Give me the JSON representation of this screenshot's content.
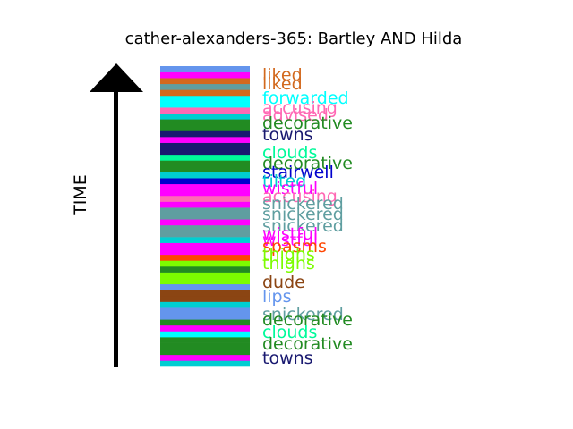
{
  "chart_data": {
    "type": "timeline-strip",
    "title": "cather-alexanders-365: Bartley AND Hilda",
    "ylabel": "TIME",
    "ylim": [
      0,
      336
    ],
    "stripe_colors": [
      "#00ced1",
      "#ff00ff",
      "#228b22",
      "#228b22",
      "#228b22",
      "#00ffff",
      "#ff00ff",
      "#228b22",
      "#6495ed",
      "#6495ed",
      "#00ced1",
      "#8b4513",
      "#8b4513",
      "#6495ed",
      "#7cfc00",
      "#7cfc00",
      "#228b22",
      "#7cfc00",
      "#ff4500",
      "#ff00ff",
      "#ff00ff",
      "#00ced1",
      "#5f9ea0",
      "#5f9ea0",
      "#ff00ff",
      "#5f9ea0",
      "#5f9ea0",
      "#ff00ff",
      "#ff69b4",
      "#ff00ff",
      "#ff00ff",
      "#0000cd",
      "#00ced1",
      "#228b22",
      "#228b22",
      "#00fa9a",
      "#191970",
      "#191970",
      "#ff00ff",
      "#191970",
      "#228b22",
      "#228b22",
      "#00ced1",
      "#ff69b4",
      "#00ffff",
      "#00ffff",
      "#d2691e",
      "#5f9ea0",
      "#d2691e",
      "#ff00ff",
      "#6495ed"
    ],
    "labels": [
      {
        "text": "liked",
        "color": "#d2691e",
        "y": 326
      },
      {
        "text": "liked",
        "color": "#d2691e",
        "y": 316
      },
      {
        "text": "forwarded",
        "color": "#00ffff",
        "y": 300
      },
      {
        "text": "accusing",
        "color": "#ff69b4",
        "y": 289
      },
      {
        "text": "advised",
        "color": "#ff69b4",
        "y": 281
      },
      {
        "text": "decorative",
        "color": "#228b22",
        "y": 272
      },
      {
        "text": "towns",
        "color": "#191970",
        "y": 259
      },
      {
        "text": "clouds",
        "color": "#00fa9a",
        "y": 239
      },
      {
        "text": "decorative",
        "color": "#228b22",
        "y": 227
      },
      {
        "text": "stairwell",
        "color": "#0000cd",
        "y": 217
      },
      {
        "text": "tilted",
        "color": "#00ced1",
        "y": 207
      },
      {
        "text": "wistful",
        "color": "#ff00ff",
        "y": 199
      },
      {
        "text": "accusing",
        "color": "#ff69b4",
        "y": 190
      },
      {
        "text": "snickered",
        "color": "#5f9ea0",
        "y": 182
      },
      {
        "text": "snickered",
        "color": "#5f9ea0",
        "y": 170
      },
      {
        "text": "snickered",
        "color": "#5f9ea0",
        "y": 157
      },
      {
        "text": "wistful",
        "color": "#ff00ff",
        "y": 148
      },
      {
        "text": "wistful",
        "color": "#ff00ff",
        "y": 141
      },
      {
        "text": "spasms",
        "color": "#ff4500",
        "y": 134
      },
      {
        "text": "thighs",
        "color": "#7cfc00",
        "y": 125
      },
      {
        "text": "thighs",
        "color": "#7cfc00",
        "y": 115
      },
      {
        "text": "dude",
        "color": "#8b4513",
        "y": 94
      },
      {
        "text": "lips",
        "color": "#6495ed",
        "y": 78
      },
      {
        "text": "snickered",
        "color": "#5f9ea0",
        "y": 58
      },
      {
        "text": "decorative",
        "color": "#228b22",
        "y": 52
      },
      {
        "text": "clouds",
        "color": "#00fa9a",
        "y": 38
      },
      {
        "text": "decorative",
        "color": "#228b22",
        "y": 25
      },
      {
        "text": "towns",
        "color": "#191970",
        "y": 9
      }
    ]
  }
}
